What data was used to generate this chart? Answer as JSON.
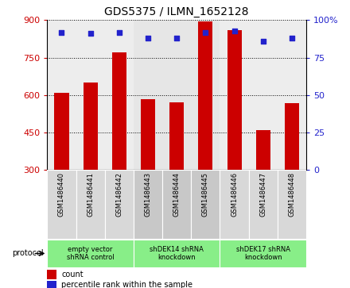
{
  "title": "GDS5375 / ILMN_1652128",
  "samples": [
    "GSM1486440",
    "GSM1486441",
    "GSM1486442",
    "GSM1486443",
    "GSM1486444",
    "GSM1486445",
    "GSM1486446",
    "GSM1486447",
    "GSM1486448"
  ],
  "counts": [
    608,
    650,
    770,
    585,
    570,
    895,
    860,
    458,
    568
  ],
  "percentile_ranks": [
    92,
    91,
    92,
    88,
    88,
    92,
    93,
    86,
    88
  ],
  "ylim_left": [
    300,
    900
  ],
  "yticks_left": [
    300,
    450,
    600,
    750,
    900
  ],
  "ylim_right": [
    0,
    100
  ],
  "yticks_right": [
    0,
    25,
    50,
    75,
    100
  ],
  "bar_color": "#cc0000",
  "dot_color": "#2222cc",
  "group_defs": [
    {
      "start": 0,
      "end": 3,
      "label": "empty vector\nshRNA control"
    },
    {
      "start": 3,
      "end": 6,
      "label": "shDEK14 shRNA\nknockdown"
    },
    {
      "start": 6,
      "end": 9,
      "label": "shDEK17 shRNA\nknockdown"
    }
  ],
  "col_bg_colors": [
    "#d8d8d8",
    "#c8c8c8",
    "#d8d8d8"
  ],
  "group_color": "#88ee88",
  "legend_count_label": "count",
  "legend_pct_label": "percentile rank within the sample",
  "protocol_label": "protocol",
  "bg_color": "#ffffff",
  "tick_color_left": "#cc0000",
  "tick_color_right": "#2222cc"
}
